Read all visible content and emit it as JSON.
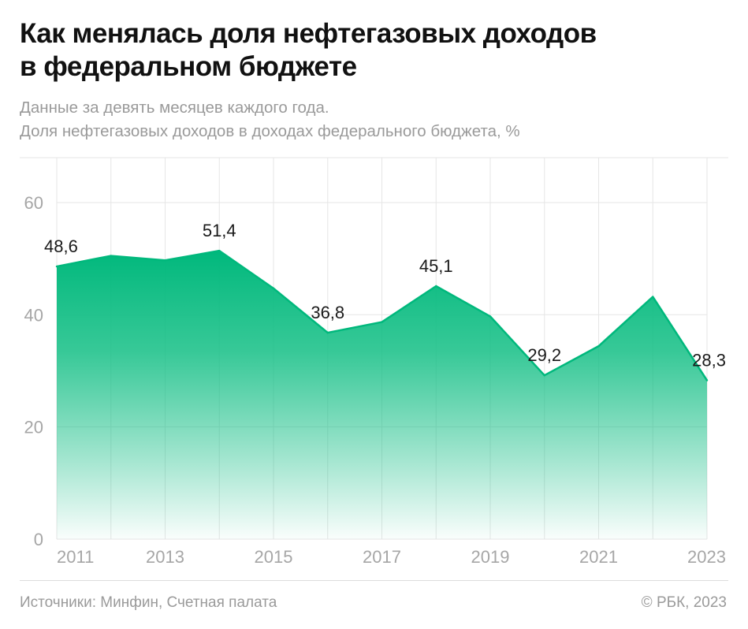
{
  "title_line1": "Как менялась доля нефтегазовых доходов",
  "title_line2": "в федеральном бюджете",
  "subtitle_line1": "Данные за девять месяцев каждого года.",
  "subtitle_line2": "Доля нефтегазовых доходов в доходах федерального бюджета, %",
  "source": "Источники: Минфин, Счетная палата",
  "copyright": "© РБК, 2023",
  "colors": {
    "accent": "#00b87c",
    "grid": "#e6e6e6",
    "tick": "#a6a6a6"
  },
  "chart_data": {
    "type": "area",
    "x": [
      2011,
      2012,
      2013,
      2014,
      2015,
      2016,
      2017,
      2018,
      2019,
      2020,
      2021,
      2022,
      2023
    ],
    "series": [
      {
        "values": [
          48.6,
          50.5,
          49.7,
          51.4,
          44.7,
          36.8,
          38.7,
          45.1,
          39.7,
          29.2,
          34.4,
          43.2,
          28.3
        ]
      }
    ],
    "x_tick_labels": [
      "2011",
      "2013",
      "2015",
      "2017",
      "2019",
      "2021",
      "2023"
    ],
    "y_ticks": [
      0,
      20,
      40,
      60
    ],
    "y_tick_labels": [
      "0",
      "20",
      "40",
      "60"
    ],
    "ylim": [
      0,
      68
    ],
    "grid": true,
    "data_labels": [
      {
        "x": 2011,
        "text": "48,6"
      },
      {
        "x": 2014,
        "text": "51,4"
      },
      {
        "x": 2016,
        "text": "36,8"
      },
      {
        "x": 2018,
        "text": "45,1"
      },
      {
        "x": 2020,
        "text": "29,2"
      },
      {
        "x": 2023,
        "text": "28,3"
      }
    ]
  }
}
